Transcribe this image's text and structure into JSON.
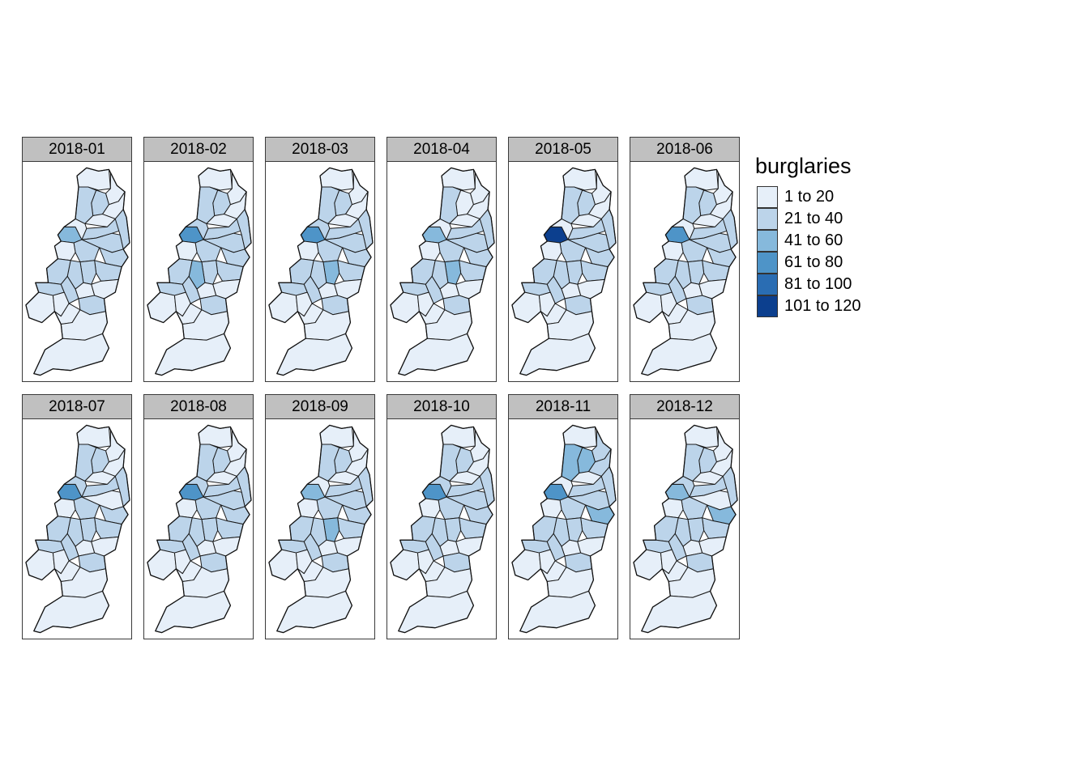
{
  "legend": {
    "title": "burglaries",
    "classes": [
      {
        "label": "1 to 20",
        "color": "#e6eff9"
      },
      {
        "label": "21 to 40",
        "color": "#bcd4ea"
      },
      {
        "label": "41 to 60",
        "color": "#86b9dc"
      },
      {
        "label": "61 to 80",
        "color": "#4e94c8"
      },
      {
        "label": "81 to 100",
        "color": "#2a6db3"
      },
      {
        "label": "101 to 120",
        "color": "#0c3f8e"
      }
    ]
  },
  "panels": [
    {
      "label": "2018-01",
      "classes": [
        0,
        0,
        1,
        1,
        0,
        0,
        2,
        1,
        1,
        1,
        0,
        1,
        0,
        1,
        1,
        1,
        1,
        1,
        1,
        0,
        0,
        1,
        1,
        0,
        0,
        0,
        0,
        0
      ]
    },
    {
      "label": "2018-02",
      "classes": [
        0,
        0,
        1,
        1,
        0,
        0,
        3,
        1,
        1,
        1,
        1,
        1,
        0,
        1,
        1,
        1,
        2,
        1,
        1,
        0,
        0,
        1,
        1,
        0,
        0,
        0,
        0,
        0
      ]
    },
    {
      "label": "2018-03",
      "classes": [
        0,
        0,
        1,
        1,
        0,
        0,
        3,
        1,
        1,
        1,
        1,
        1,
        0,
        1,
        1,
        2,
        1,
        1,
        1,
        0,
        0,
        1,
        1,
        0,
        0,
        0,
        0,
        0
      ]
    },
    {
      "label": "2018-04",
      "classes": [
        0,
        0,
        0,
        1,
        0,
        0,
        2,
        1,
        1,
        1,
        0,
        1,
        0,
        1,
        1,
        2,
        1,
        1,
        1,
        0,
        0,
        1,
        1,
        0,
        0,
        0,
        0,
        0
      ]
    },
    {
      "label": "2018-05",
      "classes": [
        0,
        0,
        1,
        1,
        0,
        0,
        5,
        1,
        1,
        1,
        0,
        1,
        0,
        1,
        1,
        1,
        1,
        1,
        1,
        0,
        0,
        1,
        1,
        0,
        0,
        0,
        0,
        0
      ]
    },
    {
      "label": "2018-06",
      "classes": [
        0,
        0,
        1,
        1,
        0,
        0,
        3,
        1,
        1,
        1,
        0,
        1,
        0,
        1,
        1,
        1,
        1,
        1,
        1,
        0,
        0,
        1,
        1,
        0,
        0,
        0,
        0,
        0
      ]
    },
    {
      "label": "2018-07",
      "classes": [
        0,
        0,
        1,
        1,
        0,
        0,
        3,
        1,
        1,
        0,
        1,
        1,
        0,
        1,
        1,
        1,
        1,
        1,
        1,
        0,
        0,
        1,
        1,
        0,
        0,
        0,
        0,
        0
      ]
    },
    {
      "label": "2018-08",
      "classes": [
        0,
        0,
        1,
        1,
        0,
        0,
        3,
        1,
        1,
        1,
        1,
        1,
        0,
        1,
        1,
        1,
        1,
        1,
        1,
        0,
        0,
        1,
        1,
        0,
        0,
        0,
        0,
        0
      ]
    },
    {
      "label": "2018-09",
      "classes": [
        0,
        0,
        1,
        1,
        0,
        0,
        2,
        1,
        1,
        1,
        0,
        1,
        0,
        1,
        1,
        2,
        1,
        1,
        1,
        0,
        0,
        1,
        1,
        0,
        0,
        0,
        0,
        0
      ]
    },
    {
      "label": "2018-10",
      "classes": [
        0,
        0,
        1,
        1,
        0,
        0,
        3,
        1,
        1,
        1,
        1,
        1,
        0,
        1,
        1,
        1,
        1,
        1,
        1,
        0,
        0,
        1,
        1,
        0,
        0,
        0,
        0,
        0
      ]
    },
    {
      "label": "2018-11",
      "classes": [
        0,
        1,
        2,
        2,
        1,
        0,
        3,
        1,
        1,
        1,
        0,
        1,
        0,
        2,
        1,
        1,
        1,
        1,
        1,
        0,
        0,
        1,
        1,
        0,
        0,
        0,
        0,
        0
      ]
    },
    {
      "label": "2018-12",
      "classes": [
        0,
        0,
        1,
        1,
        0,
        0,
        2,
        1,
        1,
        0,
        1,
        1,
        0,
        2,
        1,
        1,
        1,
        1,
        1,
        0,
        0,
        1,
        1,
        0,
        0,
        0,
        0,
        0
      ]
    }
  ]
}
